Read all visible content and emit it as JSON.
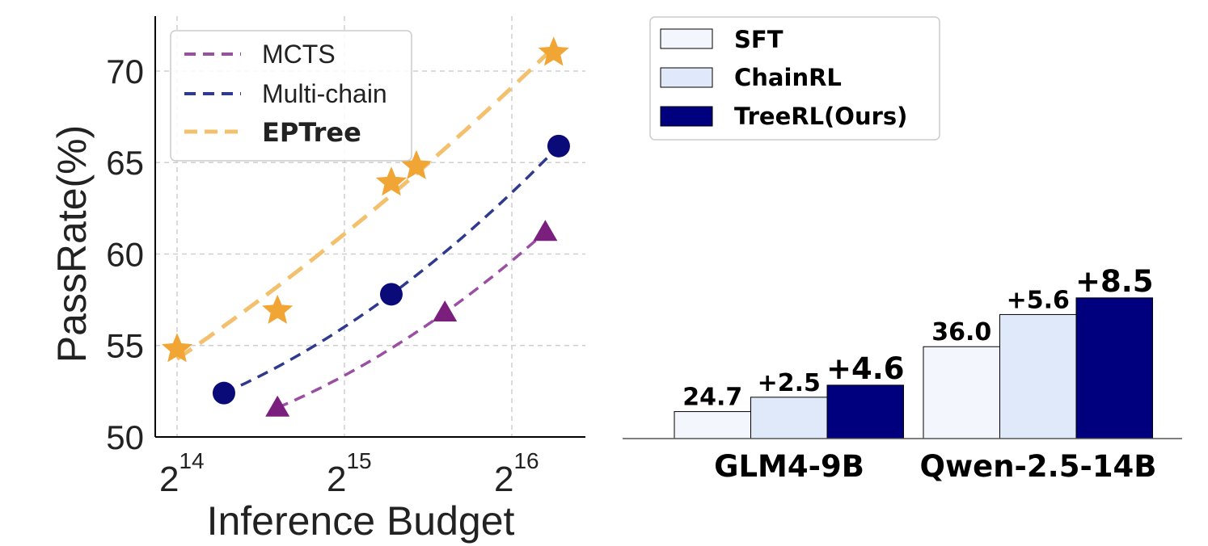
{
  "chart_data": [
    {
      "type": "line",
      "xlabel": "Inference Budget",
      "ylabel": "PassRate(%)",
      "xscale": "log2",
      "xlim": [
        14.7,
        17.2
      ],
      "ylim": [
        50,
        73
      ],
      "grid": true,
      "legend_position": "top-left",
      "xticks": [
        {
          "value": 15,
          "base": "2",
          "exp": "14"
        },
        {
          "value": 16,
          "base": "2",
          "exp": "15"
        },
        {
          "value": 17,
          "base": "2",
          "exp": "16"
        }
      ],
      "yticks": [
        50,
        55,
        60,
        65,
        70
      ],
      "series": [
        {
          "name": "MCTS",
          "color": "#7b1f7f",
          "line_color": "#9b4fa3",
          "marker": "triangle",
          "x": [
            15.6,
            16.6,
            17.2
          ],
          "y": [
            51.6,
            56.8,
            61.2
          ]
        },
        {
          "name": "Multi-chain",
          "color": "#0a0a78",
          "line_color": "#2f3a8f",
          "marker": "circle",
          "x": [
            15.28,
            16.28,
            17.28
          ],
          "y": [
            52.4,
            57.8,
            65.9
          ]
        },
        {
          "name": "EPTree",
          "color": "#f0a534",
          "line_color": "#f3c06e",
          "marker": "star",
          "bold": true,
          "x": [
            15.0,
            15.6,
            16.28,
            16.43,
            17.25
          ],
          "y": [
            54.8,
            56.9,
            63.9,
            64.8,
            71.0
          ]
        }
      ]
    },
    {
      "type": "bar",
      "categories": [
        "GLM4-9B",
        "Qwen-2.5-14B"
      ],
      "ylim": [
        20,
        80
      ],
      "legend_position": "top-left",
      "series": [
        {
          "name": "SFT",
          "color": "#f3f6fd",
          "values": [
            24.7,
            36.0
          ],
          "labels": [
            "24.7",
            "36.0"
          ]
        },
        {
          "name": "ChainRL",
          "color": "#dfe9f9",
          "values": [
            27.2,
            41.6
          ],
          "labels": [
            "+2.5",
            "+5.6"
          ]
        },
        {
          "name": "TreeRL(Ours)",
          "color": "#00007f",
          "values": [
            29.3,
            44.5
          ],
          "labels": [
            "+4.6",
            "+8.5"
          ]
        }
      ]
    }
  ]
}
